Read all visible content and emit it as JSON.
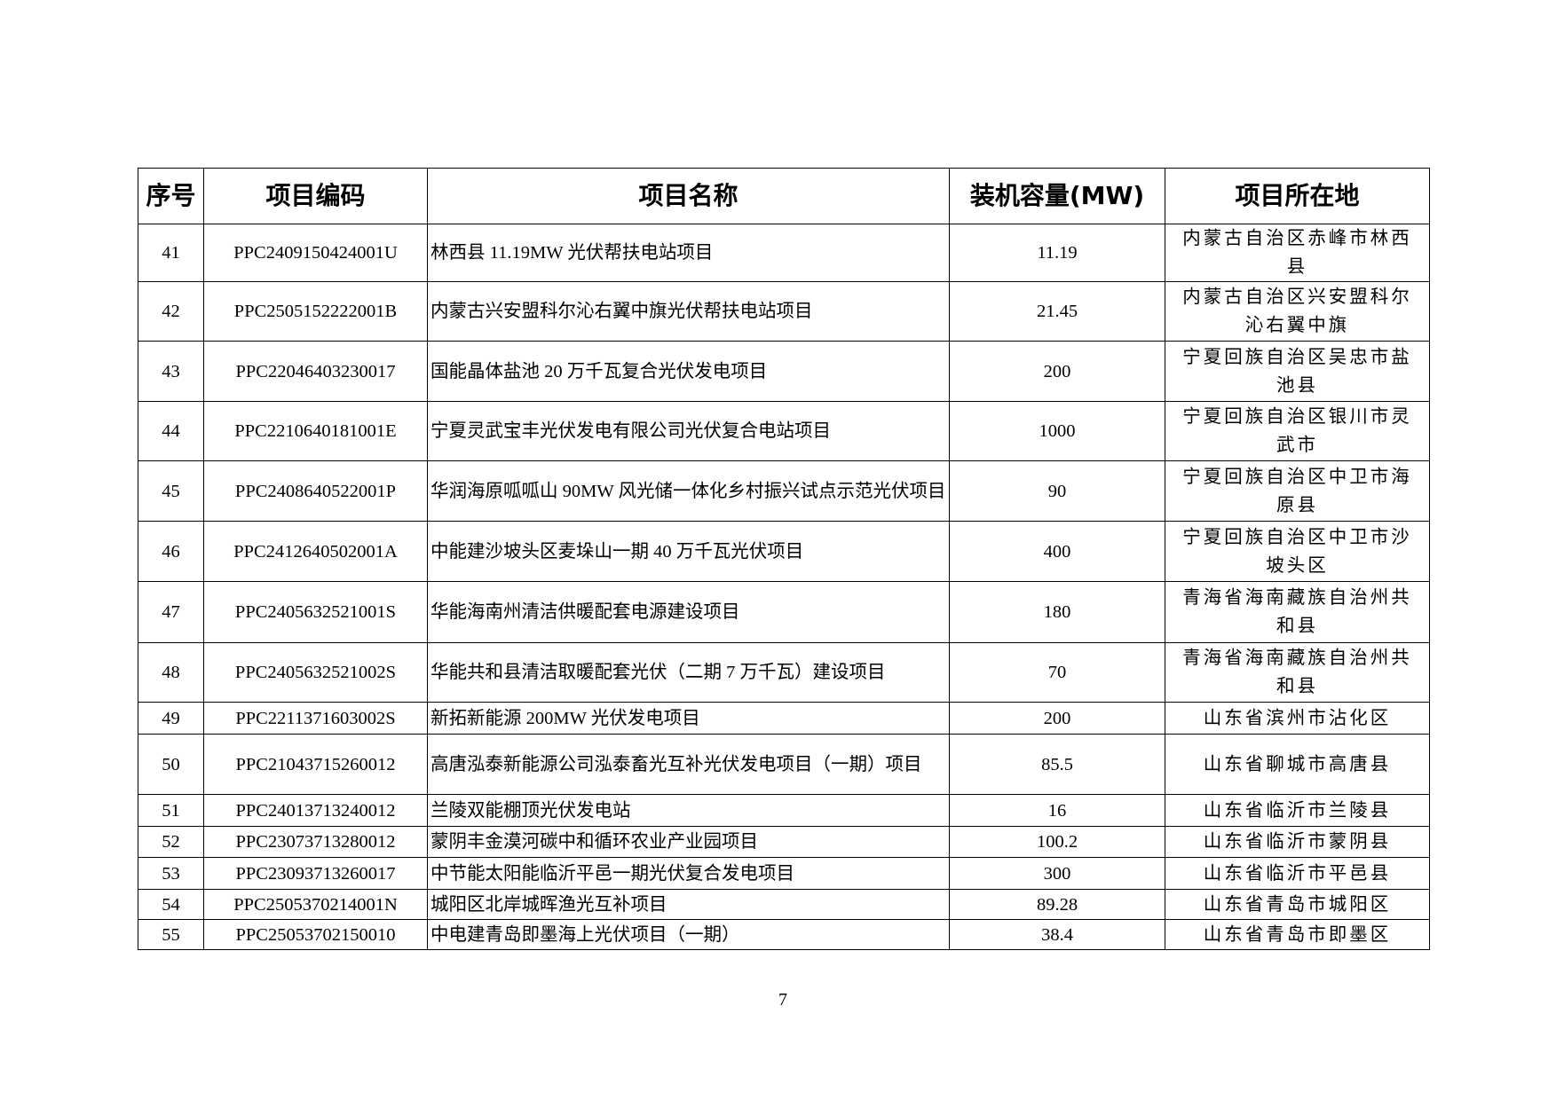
{
  "table": {
    "headers": [
      "序号",
      "项目编码",
      "项目名称",
      "装机容量(MW)",
      "项目所在地"
    ],
    "rows": [
      {
        "no": "41",
        "code": "PPC2409150424001U",
        "name": "林西县 11.19MW 光伏帮扶电站项目",
        "capacity": "11.19",
        "location": "内蒙古自治区赤峰市林西县"
      },
      {
        "no": "42",
        "code": "PPC2505152222001B",
        "name": "内蒙古兴安盟科尔沁右翼中旗光伏帮扶电站项目",
        "capacity": "21.45",
        "location": "内蒙古自治区兴安盟科尔沁右翼中旗"
      },
      {
        "no": "43",
        "code": "PPC22046403230017",
        "name": "国能晶体盐池 20 万千瓦复合光伏发电项目",
        "capacity": "200",
        "location": "宁夏回族自治区吴忠市盐池县"
      },
      {
        "no": "44",
        "code": "PPC2210640181001E",
        "name": "宁夏灵武宝丰光伏发电有限公司光伏复合电站项目",
        "capacity": "1000",
        "location": "宁夏回族自治区银川市灵武市"
      },
      {
        "no": "45",
        "code": "PPC2408640522001P",
        "name": "华润海原呱呱山 90MW 风光储一体化乡村振兴试点示范光伏项目",
        "capacity": "90",
        "location": "宁夏回族自治区中卫市海原县"
      },
      {
        "no": "46",
        "code": "PPC2412640502001A",
        "name": "中能建沙坡头区麦垛山一期 40 万千瓦光伏项目",
        "capacity": "400",
        "location": "宁夏回族自治区中卫市沙坡头区"
      },
      {
        "no": "47",
        "code": "PPC2405632521001S",
        "name": "华能海南州清洁供暖配套电源建设项目",
        "capacity": "180",
        "location": "青海省海南藏族自治州共和县"
      },
      {
        "no": "48",
        "code": "PPC2405632521002S",
        "name": "华能共和县清洁取暖配套光伏（二期 7 万千瓦）建设项目",
        "capacity": "70",
        "location": "青海省海南藏族自治州共和县"
      },
      {
        "no": "49",
        "code": "PPC2211371603002S",
        "name": "新拓新能源 200MW 光伏发电项目",
        "capacity": "200",
        "location": "山东省滨州市沾化区"
      },
      {
        "no": "50",
        "code": "PPC21043715260012",
        "name": "高唐泓泰新能源公司泓泰畜光互补光伏发电项目（一期）项目",
        "capacity": "85.5",
        "location": "山东省聊城市高唐县"
      },
      {
        "no": "51",
        "code": "PPC24013713240012",
        "name": "兰陵双能棚顶光伏发电站",
        "capacity": "16",
        "location": "山东省临沂市兰陵县"
      },
      {
        "no": "52",
        "code": "PPC23073713280012",
        "name": "蒙阴丰金漠河碳中和循环农业产业园项目",
        "capacity": "100.2",
        "location": "山东省临沂市蒙阴县"
      },
      {
        "no": "53",
        "code": "PPC23093713260017",
        "name": "中节能太阳能临沂平邑一期光伏复合发电项目",
        "capacity": "300",
        "location": "山东省临沂市平邑县"
      },
      {
        "no": "54",
        "code": "PPC2505370214001N",
        "name": "城阳区北岸城晖渔光互补项目",
        "capacity": "89.28",
        "location": "山东省青岛市城阳区"
      },
      {
        "no": "55",
        "code": "PPC25053702150010",
        "name": "中电建青岛即墨海上光伏项目（一期）",
        "capacity": "38.4",
        "location": "山东省青岛市即墨区"
      }
    ]
  },
  "page_number": "7"
}
